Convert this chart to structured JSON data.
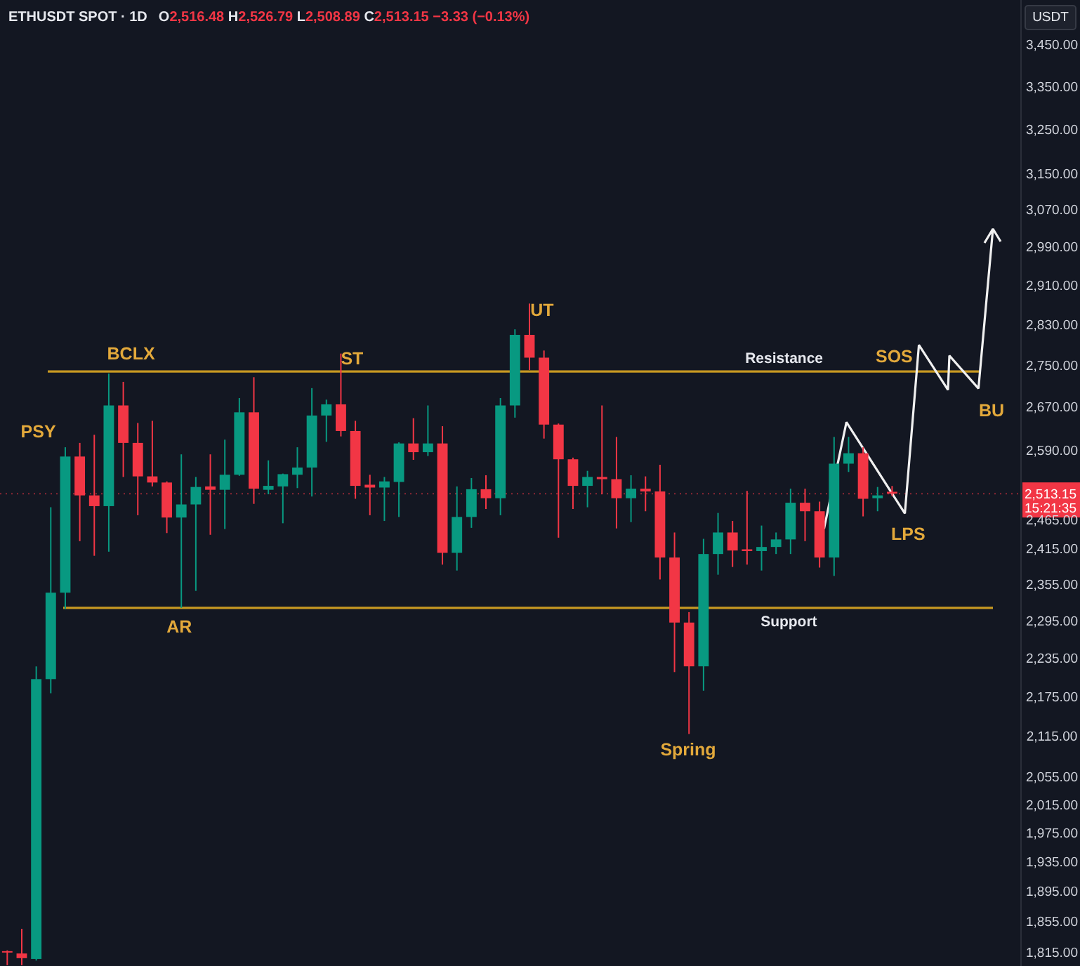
{
  "chart_data": {
    "type": "candlestick",
    "title": "ETHUSDT SPOT · 1D",
    "subtitle": "O2,516.48 H2,526.79 L2,508.89 C2,513.15 −3.33 (−0.13%)",
    "ylabel": "USDT",
    "log": true,
    "categories": [
      null,
      null,
      null,
      null,
      null,
      null,
      null,
      null,
      null,
      null,
      null,
      null,
      null,
      null,
      null,
      null,
      null,
      null,
      null,
      null,
      null,
      null,
      null,
      null,
      null,
      null,
      null,
      null,
      null,
      null,
      null,
      null,
      null,
      null,
      null,
      null,
      null,
      null,
      null,
      null,
      null,
      null,
      null,
      null,
      null,
      null,
      null,
      null,
      null,
      null,
      null,
      null,
      null,
      null,
      null,
      null,
      null,
      null,
      null,
      null,
      null,
      null,
      null,
      null,
      null,
      null,
      null,
      null,
      null,
      null
    ],
    "ohlc": [
      [
        1818,
        1819,
        1800,
        1817
      ],
      [
        1815,
        1847,
        1800,
        1809
      ],
      [
        1808,
        2224,
        1806,
        2204
      ],
      [
        2204,
        2489,
        2182,
        2343
      ],
      [
        2343,
        2597,
        2316,
        2580
      ],
      [
        2580,
        2605,
        2430,
        2510
      ],
      [
        2510,
        2620,
        2405,
        2491
      ],
      [
        2491,
        2736,
        2412,
        2675
      ],
      [
        2675,
        2720,
        2543,
        2605
      ],
      [
        2605,
        2642,
        2475,
        2544
      ],
      [
        2544,
        2646,
        2526,
        2533
      ],
      [
        2533,
        2535,
        2444,
        2471
      ],
      [
        2471,
        2584,
        2318,
        2494
      ],
      [
        2494,
        2543,
        2346,
        2525
      ],
      [
        2526,
        2584,
        2441,
        2520
      ],
      [
        2520,
        2611,
        2451,
        2547
      ],
      [
        2547,
        2689,
        2545,
        2662
      ],
      [
        2662,
        2729,
        2495,
        2522
      ],
      [
        2520,
        2573,
        2512,
        2527
      ],
      [
        2526,
        2549,
        2461,
        2548
      ],
      [
        2547,
        2597,
        2523,
        2560
      ],
      [
        2560,
        2708,
        2508,
        2656
      ],
      [
        2656,
        2686,
        2607,
        2677
      ],
      [
        2677,
        2775,
        2617,
        2627
      ],
      [
        2627,
        2646,
        2504,
        2527
      ],
      [
        2529,
        2547,
        2475,
        2524
      ],
      [
        2524,
        2543,
        2465,
        2535
      ],
      [
        2534,
        2606,
        2472,
        2604
      ],
      [
        2604,
        2651,
        2574,
        2588
      ],
      [
        2588,
        2675,
        2581,
        2604
      ],
      [
        2604,
        2636,
        2390,
        2410
      ],
      [
        2410,
        2526,
        2380,
        2472
      ],
      [
        2472,
        2541,
        2453,
        2521
      ],
      [
        2521,
        2546,
        2486,
        2505
      ],
      [
        2505,
        2689,
        2475,
        2675
      ],
      [
        2675,
        2823,
        2652,
        2812
      ],
      [
        2812,
        2875,
        2743,
        2767
      ],
      [
        2767,
        2781,
        2613,
        2639
      ],
      [
        2639,
        2641,
        2436,
        2575
      ],
      [
        2575,
        2578,
        2486,
        2527
      ],
      [
        2527,
        2554,
        2489,
        2543
      ],
      [
        2543,
        2675,
        2512,
        2539
      ],
      [
        2539,
        2616,
        2452,
        2505
      ],
      [
        2505,
        2546,
        2463,
        2522
      ],
      [
        2522,
        2544,
        2482,
        2517
      ],
      [
        2517,
        2565,
        2365,
        2402
      ],
      [
        2402,
        2445,
        2215,
        2294
      ],
      [
        2294,
        2311,
        2120,
        2224
      ],
      [
        2224,
        2434,
        2186,
        2408
      ],
      [
        2408,
        2479,
        2373,
        2445
      ],
      [
        2445,
        2465,
        2386,
        2414
      ],
      [
        2416,
        2518,
        2390,
        2413
      ],
      [
        2413,
        2457,
        2380,
        2420
      ],
      [
        2420,
        2445,
        2408,
        2433
      ],
      [
        2433,
        2522,
        2408,
        2497
      ],
      [
        2497,
        2522,
        2430,
        2482
      ],
      [
        2482,
        2499,
        2385,
        2402
      ],
      [
        2402,
        2616,
        2371,
        2567
      ],
      [
        2567,
        2616,
        2552,
        2586
      ],
      [
        2586,
        2597,
        2473,
        2504
      ],
      [
        2505,
        2525,
        2482,
        2510
      ],
      [
        2516.48,
        2526.79,
        2508.89,
        2513.15
      ],
      null,
      null,
      null,
      null,
      null,
      null,
      null,
      null
    ],
    "colors": [
      "#f23645",
      "#f23645",
      "#089981",
      "#089981",
      "#089981",
      "#f23645",
      "#f23645",
      "#089981",
      "#f23645",
      "#f23645",
      "#f23645",
      "#f23645",
      "#089981",
      "#089981",
      "#f23645",
      "#089981",
      "#089981",
      "#f23645",
      "#089981",
      "#089981",
      "#089981",
      "#089981",
      "#089981",
      "#f23645",
      "#f23645",
      "#f23645",
      "#089981",
      "#089981",
      "#f23645",
      "#089981",
      "#f23645",
      "#089981",
      "#089981",
      "#f23645",
      "#089981",
      "#089981",
      "#f23645",
      "#f23645",
      "#f23645",
      "#f23645",
      "#089981",
      "#f23645",
      "#f23645",
      "#089981",
      "#f23645",
      "#f23645",
      "#f23645",
      "#f23645",
      "#089981",
      "#089981",
      "#f23645",
      "#f23645",
      "#089981",
      "#089981",
      "#089981",
      "#f23645",
      "#f23645",
      "#089981",
      "#089981",
      "#f23645",
      "#089981",
      "#f23645",
      null,
      null,
      null,
      null,
      null,
      null,
      null,
      null
    ],
    "ylim": [
      1799,
      3564
    ],
    "yticks": [
      {
        "value": 3450,
        "label": "3,450.00"
      },
      {
        "value": 3350,
        "label": "3,350.00"
      },
      {
        "value": 3250,
        "label": "3,250.00"
      },
      {
        "value": 3150,
        "label": "3,150.00"
      },
      {
        "value": 3070,
        "label": "3,070.00"
      },
      {
        "value": 2990,
        "label": "2,990.00"
      },
      {
        "value": 2910,
        "label": "2,910.00"
      },
      {
        "value": 2830,
        "label": "2,830.00"
      },
      {
        "value": 2750,
        "label": "2,750.00"
      },
      {
        "value": 2670,
        "label": "2,670.00"
      },
      {
        "value": 2590,
        "label": "2,590.00"
      },
      {
        "value": 2465,
        "label": "2,465.00"
      },
      {
        "value": 2415,
        "label": "2,415.00"
      },
      {
        "value": 2355,
        "label": "2,355.00"
      },
      {
        "value": 2295,
        "label": "2,295.00"
      },
      {
        "value": 2235,
        "label": "2,235.00"
      },
      {
        "value": 2175,
        "label": "2,175.00"
      },
      {
        "value": 2115,
        "label": "2,115.00"
      },
      {
        "value": 2055,
        "label": "2,055.00"
      },
      {
        "value": 2015,
        "label": "2,015.00"
      },
      {
        "value": 1975,
        "label": "1,975.00"
      },
      {
        "value": 1935,
        "label": "1,935.00"
      },
      {
        "value": 1895,
        "label": "1,895.00"
      },
      {
        "value": 1855,
        "label": "1,855.00"
      },
      {
        "value": 1815,
        "label": "1,815.00"
      }
    ],
    "ref_lines": [
      {
        "axis": "y",
        "value": 2740,
        "label": "Resistance",
        "color": "#c99a22"
      },
      {
        "axis": "y",
        "value": 2318,
        "label": "Support",
        "color": "#c99a22"
      },
      {
        "axis": "y",
        "value": 2513.15,
        "label": "2,513.15",
        "color": "#f23645",
        "line_style": "dotted"
      }
    ],
    "annotations": [
      "PSY",
      "BCLX",
      "AR",
      "ST",
      "UT",
      "Spring",
      "SOS",
      "LPS",
      "BU",
      "15:21:35"
    ]
  }
}
